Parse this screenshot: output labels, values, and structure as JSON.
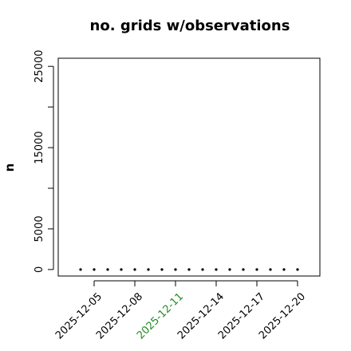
{
  "chart_data": {
    "type": "scatter",
    "title": "no. grids w/observations",
    "ylabel": "n",
    "x": [
      "2025-12-04",
      "2025-12-05",
      "2025-12-06",
      "2025-12-07",
      "2025-12-08",
      "2025-12-09",
      "2025-12-10",
      "2025-12-11",
      "2025-12-12",
      "2025-12-13",
      "2025-12-14",
      "2025-12-15",
      "2025-12-16",
      "2025-12-17",
      "2025-12-18",
      "2025-12-19",
      "2025-12-20"
    ],
    "values": [
      0,
      0,
      0,
      0,
      0,
      0,
      0,
      0,
      0,
      0,
      0,
      0,
      0,
      0,
      0,
      0,
      0
    ],
    "color": "#000000",
    "xticks": [
      "2025-12-05",
      "2025-12-08",
      "2025-12-11",
      "2025-12-14",
      "2025-12-17",
      "2025-12-20"
    ],
    "highlight_xtick": "2025-12-11",
    "highlight_color": "#228b22",
    "ylim": [
      -800,
      26000
    ],
    "yticks": [
      0,
      5000,
      15000,
      25000
    ],
    "yminor_ticks": [
      10000,
      20000
    ]
  }
}
